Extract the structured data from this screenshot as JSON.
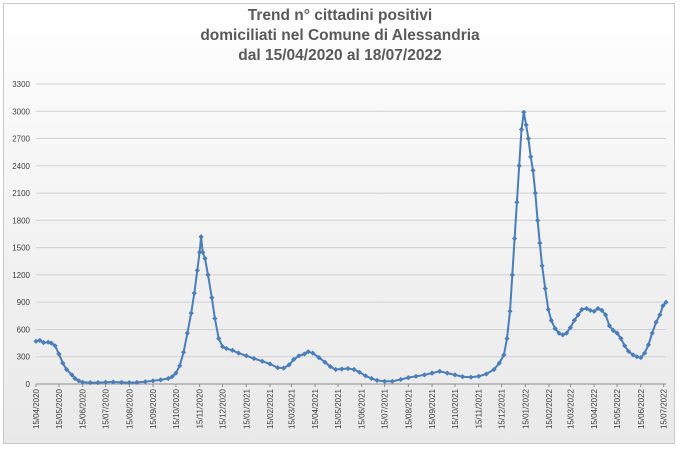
{
  "chart_data": {
    "type": "line",
    "title_lines": [
      "Trend n° cittadini positivi",
      "domiciliati nel Comune di Alessandria",
      "dal 15/04/2020 al 18/07/2022"
    ],
    "xlabel": "",
    "ylabel": "",
    "ylim": [
      0,
      3300
    ],
    "yticks": [
      0,
      300,
      600,
      900,
      1200,
      1500,
      1800,
      2100,
      2400,
      2700,
      3000,
      3300
    ],
    "x_tick_labels": [
      "15/04/2020",
      "15/05/2020",
      "15/06/2020",
      "15/07/2020",
      "15/08/2020",
      "15/09/2020",
      "15/10/2020",
      "15/11/2020",
      "15/12/2020",
      "15/01/2021",
      "15/02/2021",
      "15/03/2021",
      "15/04/2021",
      "15/05/2021",
      "15/06/2021",
      "15/07/2021",
      "15/08/2021",
      "15/09/2021",
      "15/10/2021",
      "15/11/2021",
      "15/12/2021",
      "15/01/2022",
      "15/02/2022",
      "15/03/2022",
      "15/04/2022",
      "15/05/2022",
      "15/06/2022",
      "15/07/2022"
    ],
    "x_range": [
      "2020-04-15",
      "2022-07-18"
    ],
    "grid": {
      "y": true,
      "x": false
    },
    "legend": "none",
    "series": [
      {
        "color": "#4a7ebb",
        "marker": "diamond",
        "points": [
          [
            "2020-04-15",
            470
          ],
          [
            "2020-04-20",
            480
          ],
          [
            "2020-04-25",
            455
          ],
          [
            "2020-05-01",
            460
          ],
          [
            "2020-05-05",
            450
          ],
          [
            "2020-05-10",
            420
          ],
          [
            "2020-05-15",
            330
          ],
          [
            "2020-05-20",
            230
          ],
          [
            "2020-05-25",
            160
          ],
          [
            "2020-06-01",
            100
          ],
          [
            "2020-06-05",
            60
          ],
          [
            "2020-06-10",
            35
          ],
          [
            "2020-06-15",
            20
          ],
          [
            "2020-06-25",
            15
          ],
          [
            "2020-07-05",
            15
          ],
          [
            "2020-07-15",
            20
          ],
          [
            "2020-07-25",
            22
          ],
          [
            "2020-08-05",
            18
          ],
          [
            "2020-08-15",
            15
          ],
          [
            "2020-08-25",
            18
          ],
          [
            "2020-09-05",
            25
          ],
          [
            "2020-09-15",
            35
          ],
          [
            "2020-09-25",
            45
          ],
          [
            "2020-10-05",
            60
          ],
          [
            "2020-10-10",
            80
          ],
          [
            "2020-10-15",
            120
          ],
          [
            "2020-10-20",
            200
          ],
          [
            "2020-10-25",
            350
          ],
          [
            "2020-10-30",
            560
          ],
          [
            "2020-11-04",
            780
          ],
          [
            "2020-11-08",
            1000
          ],
          [
            "2020-11-12",
            1250
          ],
          [
            "2020-11-15",
            1450
          ],
          [
            "2020-11-17",
            1620
          ],
          [
            "2020-11-19",
            1450
          ],
          [
            "2020-11-22",
            1380
          ],
          [
            "2020-11-26",
            1200
          ],
          [
            "2020-12-01",
            950
          ],
          [
            "2020-12-05",
            720
          ],
          [
            "2020-12-10",
            500
          ],
          [
            "2020-12-15",
            410
          ],
          [
            "2020-12-20",
            390
          ],
          [
            "2020-12-28",
            370
          ],
          [
            "2021-01-05",
            340
          ],
          [
            "2021-01-15",
            310
          ],
          [
            "2021-01-25",
            280
          ],
          [
            "2021-02-05",
            250
          ],
          [
            "2021-02-15",
            220
          ],
          [
            "2021-02-25",
            180
          ],
          [
            "2021-03-05",
            175
          ],
          [
            "2021-03-12",
            210
          ],
          [
            "2021-03-18",
            270
          ],
          [
            "2021-03-25",
            310
          ],
          [
            "2021-04-01",
            330
          ],
          [
            "2021-04-06",
            355
          ],
          [
            "2021-04-12",
            340
          ],
          [
            "2021-04-20",
            290
          ],
          [
            "2021-04-28",
            240
          ],
          [
            "2021-05-05",
            190
          ],
          [
            "2021-05-12",
            160
          ],
          [
            "2021-05-20",
            165
          ],
          [
            "2021-05-28",
            170
          ],
          [
            "2021-06-05",
            160
          ],
          [
            "2021-06-12",
            130
          ],
          [
            "2021-06-20",
            90
          ],
          [
            "2021-06-28",
            60
          ],
          [
            "2021-07-05",
            40
          ],
          [
            "2021-07-15",
            30
          ],
          [
            "2021-07-25",
            30
          ],
          [
            "2021-08-05",
            50
          ],
          [
            "2021-08-15",
            70
          ],
          [
            "2021-08-25",
            85
          ],
          [
            "2021-09-05",
            100
          ],
          [
            "2021-09-15",
            120
          ],
          [
            "2021-09-25",
            140
          ],
          [
            "2021-10-05",
            120
          ],
          [
            "2021-10-15",
            100
          ],
          [
            "2021-10-25",
            80
          ],
          [
            "2021-11-05",
            75
          ],
          [
            "2021-11-15",
            85
          ],
          [
            "2021-11-25",
            110
          ],
          [
            "2021-12-05",
            160
          ],
          [
            "2021-12-12",
            230
          ],
          [
            "2021-12-18",
            320
          ],
          [
            "2021-12-22",
            500
          ],
          [
            "2021-12-26",
            800
          ],
          [
            "2021-12-29",
            1200
          ],
          [
            "2022-01-01",
            1600
          ],
          [
            "2022-01-04",
            2000
          ],
          [
            "2022-01-07",
            2400
          ],
          [
            "2022-01-10",
            2800
          ],
          [
            "2022-01-13",
            2990
          ],
          [
            "2022-01-16",
            2850
          ],
          [
            "2022-01-19",
            2700
          ],
          [
            "2022-01-22",
            2500
          ],
          [
            "2022-01-25",
            2350
          ],
          [
            "2022-01-28",
            2100
          ],
          [
            "2022-01-31",
            1800
          ],
          [
            "2022-02-03",
            1550
          ],
          [
            "2022-02-06",
            1300
          ],
          [
            "2022-02-10",
            1050
          ],
          [
            "2022-02-14",
            820
          ],
          [
            "2022-02-18",
            700
          ],
          [
            "2022-02-23",
            610
          ],
          [
            "2022-02-28",
            560
          ],
          [
            "2022-03-05",
            540
          ],
          [
            "2022-03-10",
            560
          ],
          [
            "2022-03-15",
            620
          ],
          [
            "2022-03-20",
            700
          ],
          [
            "2022-03-25",
            760
          ],
          [
            "2022-03-30",
            820
          ],
          [
            "2022-04-05",
            830
          ],
          [
            "2022-04-10",
            810
          ],
          [
            "2022-04-15",
            800
          ],
          [
            "2022-04-20",
            830
          ],
          [
            "2022-04-25",
            810
          ],
          [
            "2022-04-30",
            760
          ],
          [
            "2022-05-05",
            640
          ],
          [
            "2022-05-10",
            590
          ],
          [
            "2022-05-15",
            560
          ],
          [
            "2022-05-20",
            500
          ],
          [
            "2022-05-25",
            420
          ],
          [
            "2022-05-30",
            360
          ],
          [
            "2022-06-05",
            320
          ],
          [
            "2022-06-10",
            300
          ],
          [
            "2022-06-15",
            290
          ],
          [
            "2022-06-20",
            340
          ],
          [
            "2022-06-25",
            430
          ],
          [
            "2022-06-30",
            560
          ],
          [
            "2022-07-05",
            680
          ],
          [
            "2022-07-10",
            760
          ],
          [
            "2022-07-14",
            860
          ],
          [
            "2022-07-18",
            900
          ]
        ]
      }
    ]
  }
}
